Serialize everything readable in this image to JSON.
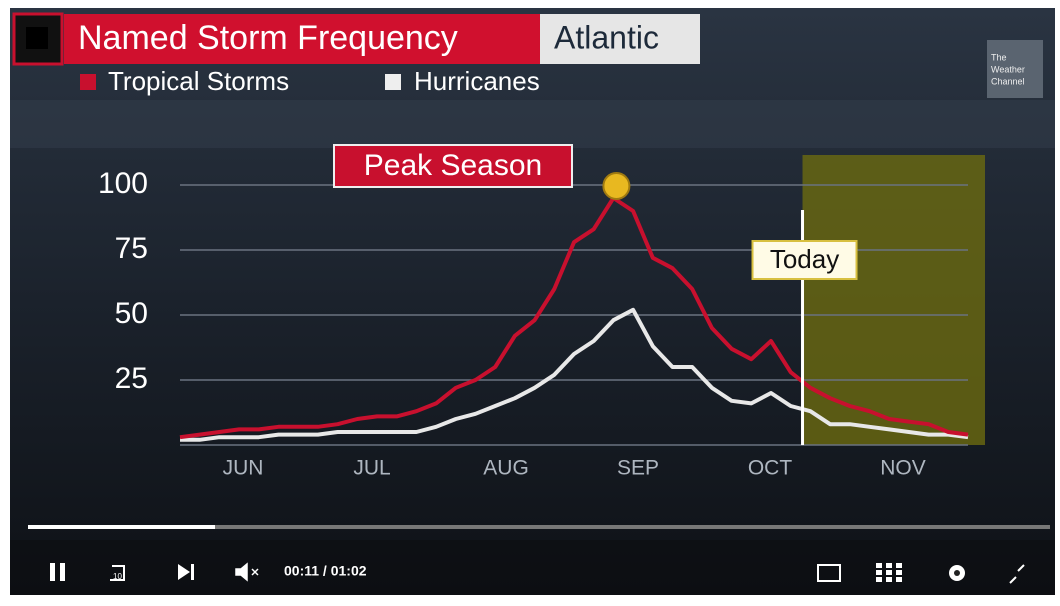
{
  "chart_data": {
    "type": "line",
    "title": "Named Storm Frequency",
    "subtitle": "Atlantic",
    "x": [
      0,
      1,
      2,
      3,
      4,
      5,
      6,
      7,
      8,
      9,
      10,
      11,
      12,
      13,
      14,
      15,
      16,
      17,
      18,
      19,
      20,
      21,
      22,
      23,
      24,
      25,
      26,
      27,
      28,
      29,
      30,
      31,
      32,
      33,
      34,
      35,
      36,
      37,
      38,
      39,
      40
    ],
    "series": [
      {
        "name": "Tropical Storms",
        "color": "#c8102e",
        "values": [
          3,
          4,
          5,
          6,
          6,
          7,
          7,
          7,
          8,
          10,
          11,
          11,
          13,
          16,
          22,
          25,
          30,
          42,
          48,
          60,
          78,
          83,
          95,
          90,
          72,
          68,
          60,
          45,
          37,
          33,
          40,
          28,
          22,
          18,
          15,
          13,
          10,
          9,
          8,
          5,
          4
        ]
      },
      {
        "name": "Hurricanes",
        "color": "#e8e8e8",
        "values": [
          2,
          2,
          3,
          3,
          3,
          4,
          4,
          4,
          5,
          5,
          5,
          5,
          5,
          7,
          10,
          12,
          15,
          18,
          22,
          27,
          35,
          40,
          48,
          52,
          38,
          30,
          30,
          22,
          17,
          16,
          20,
          15,
          13,
          8,
          8,
          7,
          6,
          5,
          4,
          4,
          3
        ]
      }
    ],
    "xlim": [
      0,
      40
    ],
    "ylim": [
      0,
      100
    ],
    "yticks": [
      25,
      50,
      75,
      100
    ],
    "xticks": [
      {
        "value": 3.2,
        "label": "JUN"
      },
      {
        "value": 9.75,
        "label": "JUL"
      },
      {
        "value": 16.55,
        "label": "AUG"
      },
      {
        "value": 23.25,
        "label": "SEP"
      },
      {
        "value": 29.95,
        "label": "OCT"
      },
      {
        "value": 36.7,
        "label": "NOV"
      }
    ],
    "grid": true,
    "annotations": [
      {
        "text": "Peak Season"
      },
      {
        "text": "Today",
        "x": 31.6
      }
    ]
  },
  "logo": {
    "line1": "The",
    "line2": "Weather",
    "line3": "Channel"
  },
  "player": {
    "time": "00:11 / 01:02",
    "replay_label": "10"
  }
}
